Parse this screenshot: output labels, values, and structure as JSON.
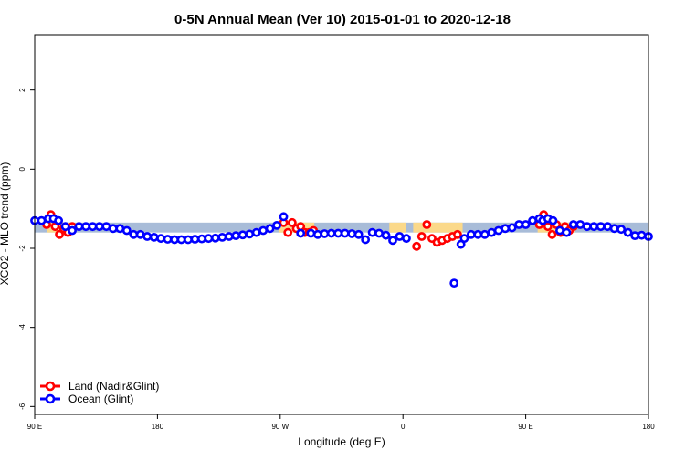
{
  "chart_data": {
    "type": "scatter",
    "title": "0-5N Annual Mean (Ver 10)   2015-01-01 to 2020-12-18",
    "xlabel": "Longitude (deg E)",
    "ylabel": "XCO2 - MLO trend (ppm)",
    "xlim": [
      90,
      450
    ],
    "ylim": [
      -6.2,
      3.4
    ],
    "x_ticks": [
      {
        "value": 90,
        "label": "90 E"
      },
      {
        "value": 162,
        "label": "180"
      },
      {
        "value": 234,
        "label": "90 W"
      },
      {
        "value": 306,
        "label": "0"
      },
      {
        "value": 378,
        "label": "90 E"
      },
      {
        "value": 450,
        "label": "180"
      }
    ],
    "y_ticks": [
      {
        "value": 2,
        "label": "2"
      },
      {
        "value": 0,
        "label": "0"
      },
      {
        "value": -2,
        "label": "-2"
      },
      {
        "value": -4,
        "label": "-4"
      },
      {
        "value": -6,
        "label": "-6"
      }
    ],
    "grid": false,
    "legend_position": "bottom-left",
    "bands": [
      {
        "name": "ocean-band",
        "color": "#a8bcd8",
        "x_start": 90,
        "x_end": 450,
        "y_low": -1.6,
        "y_high": -1.35
      },
      {
        "name": "land-band-1",
        "color": "#fbd98a",
        "x_start": 97,
        "x_end": 112,
        "y_low": -1.6,
        "y_high": -1.35
      },
      {
        "name": "land-band-2",
        "color": "#fbd98a",
        "x_start": 233,
        "x_end": 254,
        "y_low": -1.6,
        "y_high": -1.35
      },
      {
        "name": "land-band-3",
        "color": "#fbd98a",
        "x_start": 298,
        "x_end": 308,
        "y_low": -1.6,
        "y_high": -1.35
      },
      {
        "name": "land-band-4",
        "color": "#fbd98a",
        "x_start": 312,
        "x_end": 341,
        "y_low": -1.6,
        "y_high": -1.35
      },
      {
        "name": "land-band-5",
        "color": "#fbd98a",
        "x_start": 385,
        "x_end": 407,
        "y_low": -1.6,
        "y_high": -1.35
      }
    ],
    "series": [
      {
        "name": "Land (Nadir&Glint)",
        "color": "#ff0000",
        "x": [
          97,
          99.5,
          102,
          104.5,
          107,
          109.5,
          112,
          236,
          238.5,
          241,
          243.5,
          246,
          248.5,
          251,
          253.5,
          314,
          317,
          320,
          323,
          326,
          329,
          332,
          335,
          338,
          386,
          388.5,
          391,
          393.5,
          396,
          398.5,
          401,
          403.5,
          406
        ],
        "y": [
          -1.4,
          -1.15,
          -1.45,
          -1.65,
          -1.5,
          -1.6,
          -1.45,
          -1.35,
          -1.6,
          -1.35,
          -1.5,
          -1.45,
          -1.6,
          -1.6,
          -1.55,
          -1.95,
          -1.7,
          -1.4,
          -1.75,
          -1.85,
          -1.8,
          -1.75,
          -1.7,
          -1.65,
          -1.4,
          -1.15,
          -1.45,
          -1.65,
          -1.4,
          -1.6,
          -1.45,
          -1.55,
          -1.45
        ]
      },
      {
        "name": "Ocean (Glint)",
        "color": "#0000ff",
        "x": [
          90,
          94,
          98,
          101,
          104,
          108,
          112,
          116,
          120,
          124,
          128,
          132,
          136,
          140,
          144,
          148,
          152,
          156,
          160,
          164,
          168,
          172,
          176,
          180,
          184,
          188,
          192,
          196,
          200,
          204,
          208,
          212,
          216,
          220,
          224,
          228,
          232,
          236,
          246,
          252,
          256,
          260,
          264,
          268,
          272,
          276,
          280,
          284,
          288,
          292,
          296,
          300,
          304,
          308,
          336,
          340,
          342,
          346,
          350,
          354,
          358,
          362,
          366,
          370,
          374,
          378,
          382,
          386,
          388,
          391,
          394,
          398,
          402,
          406,
          410,
          414,
          418,
          422,
          426,
          430,
          434,
          438,
          442,
          446,
          450
        ],
        "y": [
          -1.3,
          -1.3,
          -1.25,
          -1.25,
          -1.3,
          -1.45,
          -1.55,
          -1.45,
          -1.45,
          -1.45,
          -1.45,
          -1.45,
          -1.5,
          -1.5,
          -1.55,
          -1.65,
          -1.65,
          -1.7,
          -1.72,
          -1.75,
          -1.77,
          -1.78,
          -1.78,
          -1.78,
          -1.77,
          -1.76,
          -1.75,
          -1.74,
          -1.72,
          -1.7,
          -1.68,
          -1.66,
          -1.64,
          -1.6,
          -1.55,
          -1.5,
          -1.42,
          -1.2,
          -1.62,
          -1.62,
          -1.65,
          -1.63,
          -1.62,
          -1.62,
          -1.62,
          -1.63,
          -1.65,
          -1.78,
          -1.6,
          -1.62,
          -1.67,
          -1.8,
          -1.7,
          -1.75,
          -2.88,
          -1.9,
          -1.75,
          -1.65,
          -1.65,
          -1.65,
          -1.6,
          -1.55,
          -1.5,
          -1.48,
          -1.4,
          -1.4,
          -1.3,
          -1.25,
          -1.3,
          -1.25,
          -1.3,
          -1.55,
          -1.6,
          -1.4,
          -1.4,
          -1.45,
          -1.45,
          -1.45,
          -1.45,
          -1.5,
          -1.52,
          -1.6,
          -1.68,
          -1.67,
          -1.7
        ]
      }
    ]
  }
}
